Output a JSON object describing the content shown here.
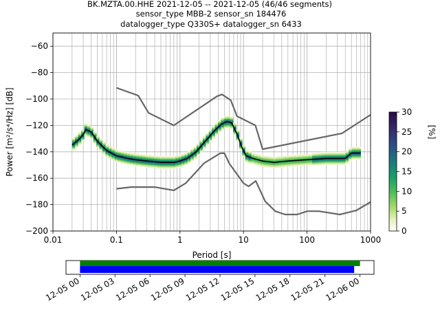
{
  "chart_data": [
    {
      "type": "heatmap",
      "title_lines": [
        "BK.MZTA.00.HHE   2021-12-05 -- 2021-12-05  (46/46 segments)",
        "sensor_type MBB-2 sensor_sn 184476",
        "datalogger_type Q330S+ datalogger_sn 6433"
      ],
      "xlabel": "Period [s]",
      "ylabel": "Power [m²/s⁴/Hz] [dB]",
      "x_scale": "log",
      "xlim": [
        0.01,
        1000
      ],
      "ylim": [
        -200,
        -50
      ],
      "x_ticks": [
        0.01,
        0.1,
        1,
        10,
        100,
        1000
      ],
      "x_tick_labels": [
        "0.01",
        "0.1",
        "1",
        "10",
        "100",
        "1000"
      ],
      "y_ticks": [
        -200,
        -180,
        -160,
        -140,
        -120,
        -100,
        -80,
        -60
      ],
      "grid": true,
      "colorbar": {
        "label": "[%]",
        "range": [
          0,
          30
        ],
        "ticks": [
          0,
          5,
          10,
          15,
          20,
          25,
          30
        ]
      },
      "series": [
        {
          "role": "mode",
          "color": "#000000",
          "x": [
            0.02,
            0.025,
            0.03,
            0.033,
            0.04,
            0.05,
            0.07,
            0.1,
            0.15,
            0.2,
            0.3,
            0.5,
            0.8,
            1.0,
            1.3,
            1.8,
            2.5,
            3.5,
            4.5,
            5.5,
            6.5,
            8,
            9.5,
            11,
            14,
            20,
            30,
            50,
            100,
            200,
            400,
            500,
            700
          ],
          "y": [
            -135,
            -131,
            -127,
            -123,
            -125,
            -132,
            -139,
            -143,
            -145,
            -146,
            -147,
            -148,
            -148,
            -147,
            -145,
            -140,
            -132,
            -124,
            -119,
            -117,
            -118,
            -127,
            -137,
            -143,
            -145,
            -147,
            -148,
            -147,
            -146,
            -145,
            -145,
            -141,
            -141
          ]
        },
        {
          "role": "high noise model",
          "color": "#666666",
          "x": [
            0.1,
            0.22,
            0.32,
            0.8,
            3.8,
            4.6,
            6.3,
            7.9,
            15.4,
            20,
            354.8,
            1000
          ],
          "y": [
            -91.5,
            -97.4,
            -110.5,
            -120,
            -98,
            -96.5,
            -101,
            -113,
            -120,
            -138,
            -126,
            -112
          ]
        },
        {
          "role": "low noise model",
          "color": "#666666",
          "x": [
            0.1,
            0.17,
            0.4,
            0.8,
            1.24,
            2.4,
            4.3,
            5,
            6,
            10,
            12,
            15.6,
            21.9,
            31.6,
            45,
            70,
            101,
            154,
            328,
            600,
            1000
          ],
          "y": [
            -168,
            -166.7,
            -166.7,
            -169.2,
            -163.7,
            -148.6,
            -141.1,
            -141.1,
            -149,
            -163.8,
            -166.2,
            -162.1,
            -177.5,
            -185,
            -187.5,
            -187.5,
            -185,
            -185,
            -187.5,
            -184.4,
            -178
          ]
        }
      ]
    },
    {
      "type": "timeline",
      "x_tick_labels": [
        "12-05 00",
        "12-05 03",
        "12-05 06",
        "12-05 09",
        "12-05 12",
        "12-05 15",
        "12-05 18",
        "12-05 21",
        "12-06 00"
      ],
      "x_range_hours": [
        -1.2,
        25.2
      ],
      "bars": [
        {
          "name": "data coverage",
          "color": "#008000",
          "start_hour": 0,
          "end_hour": 24.0
        },
        {
          "name": "PSD coverage",
          "color": "#0000ff",
          "start_hour": 0,
          "end_hour": 23.5
        }
      ]
    }
  ]
}
